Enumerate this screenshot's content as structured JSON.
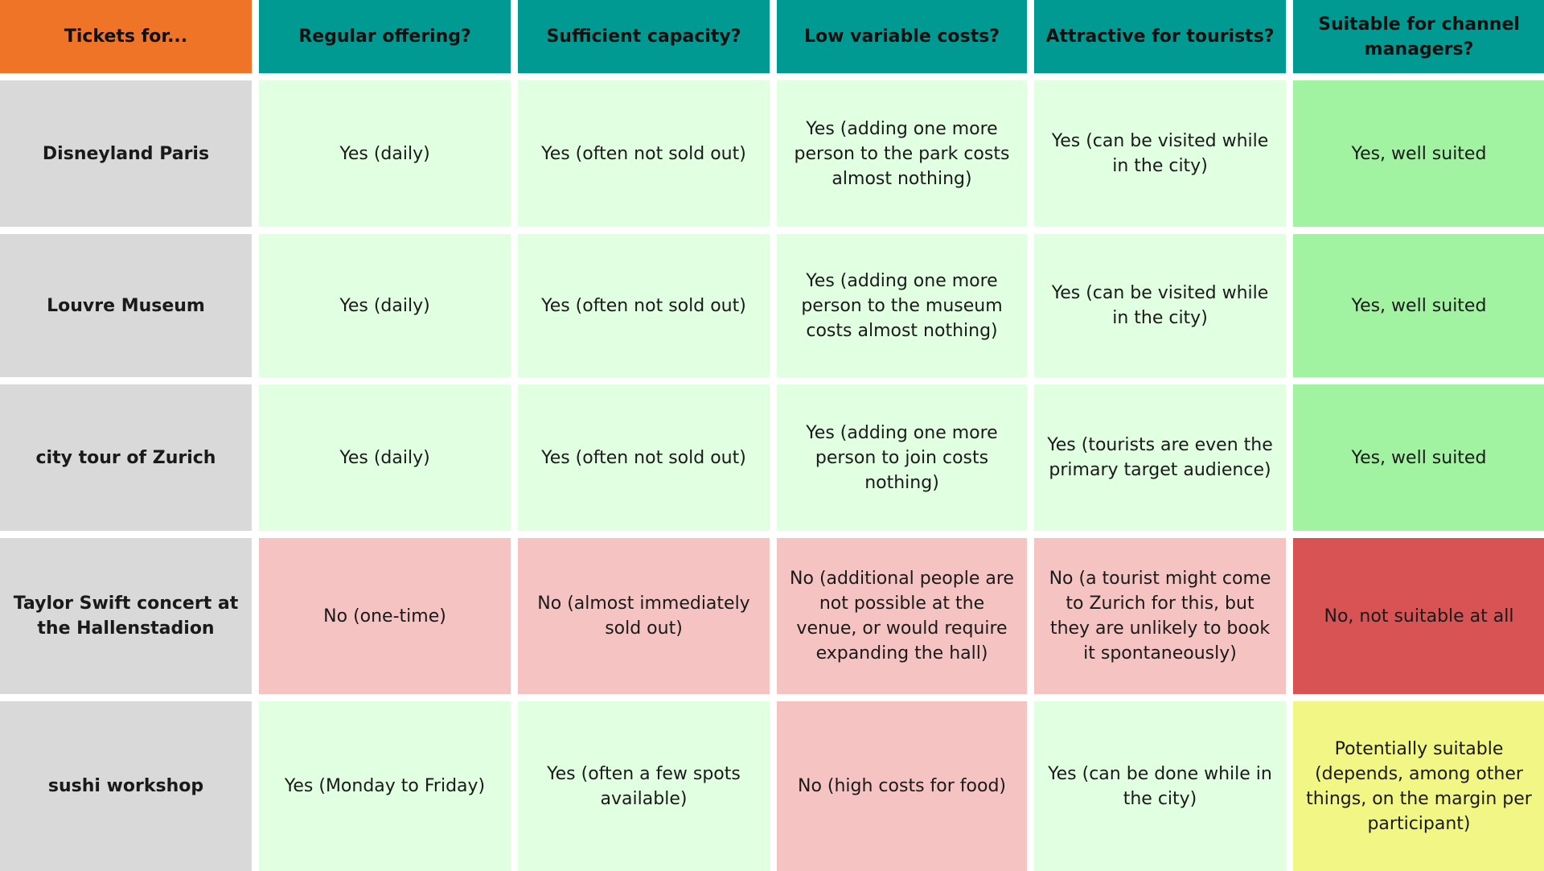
{
  "header": {
    "corner": "Tickets for...",
    "columns": [
      "Regular offering?",
      "Sufficient capacity?",
      "Low variable costs?",
      "Attractive for tourists?",
      "Suitable for channel managers?"
    ]
  },
  "rows": [
    {
      "name": "Disneyland Paris",
      "cells": [
        "Yes (daily)",
        "Yes (often not sold out)",
        "Yes (adding one more person to the park costs almost nothing)",
        "Yes (can be visited while in the city)",
        "Yes, well suited"
      ]
    },
    {
      "name": "Louvre Museum",
      "cells": [
        "Yes (daily)",
        "Yes (often not sold out)",
        "Yes (adding one more person to the museum costs almost nothing)",
        "Yes (can be visited while in the city)",
        "Yes, well suited"
      ]
    },
    {
      "name": "city tour of Zurich",
      "cells": [
        "Yes (daily)",
        "Yes (often not sold out)",
        "Yes (adding one more person to join costs nothing)",
        "Yes (tourists are even the primary target audience)",
        "Yes, well suited"
      ]
    },
    {
      "name": "Taylor Swift concert at the Hallenstadion",
      "cells": [
        "No (one-time)",
        "No (almost immediately sold out)",
        "No (additional people are not possible at the venue, or would require expanding the hall)",
        "No (a tourist might come to Zurich for this, but they are unlikely to book it spontaneously)",
        "No, not suitable at all"
      ]
    },
    {
      "name": "sushi workshop",
      "cells": [
        "Yes (Monday to Friday)",
        "Yes (often a few spots available)",
        "No (high costs for food)",
        "Yes (can be done while in the city)",
        "Potentially suitable (depends, among other things, on the margin per participant)"
      ]
    }
  ],
  "colors": {
    "corner": "#f07427",
    "header": "#009a93",
    "row_label": "#d9d9d9",
    "yes_cell": "#e1ffe1",
    "no_cell": "#f5c3c2",
    "verdict_yes": "#a1f3a1",
    "verdict_no": "#d85353",
    "verdict_maybe": "#f2f685"
  }
}
